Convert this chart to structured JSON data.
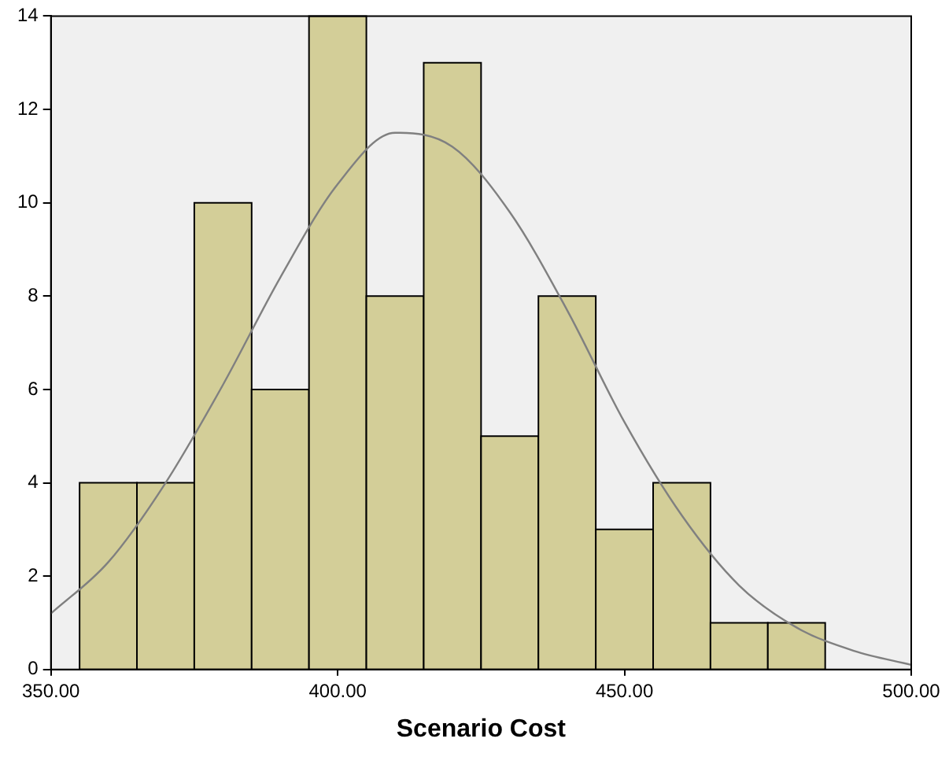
{
  "chart_data": {
    "type": "histogram",
    "xlabel": "Scenario Cost",
    "bins": [
      355,
      365,
      375,
      385,
      395,
      405,
      415,
      425,
      435,
      445,
      455,
      465,
      475,
      485
    ],
    "values": [
      4,
      4,
      10,
      6,
      14,
      8,
      13,
      5,
      8,
      3,
      4,
      1,
      1
    ],
    "color": "#d3ce98",
    "series": [
      {
        "type": "line",
        "color": "#808080",
        "x": [
          350,
          360,
          370,
          380,
          390,
          400,
          410,
          420,
          430,
          440,
          450,
          460,
          470,
          480,
          490,
          500
        ],
        "values": [
          1.2,
          2.3,
          4.0,
          6.1,
          8.4,
          10.4,
          11.5,
          11.2,
          9.8,
          7.7,
          5.3,
          3.3,
          1.8,
          0.9,
          0.4,
          0.1
        ]
      }
    ],
    "marker": "none",
    "xlim": [
      350,
      500
    ],
    "xticks": [
      {
        "value": 350,
        "label": "350.00"
      },
      {
        "value": 400,
        "label": "400.00"
      },
      {
        "value": 450,
        "label": "450.00"
      },
      {
        "value": 500,
        "label": "500.00"
      }
    ],
    "ylim": [
      0,
      14
    ],
    "yticks": [
      0,
      2,
      4,
      6,
      8,
      10,
      12,
      14
    ],
    "grid": false,
    "legend": false
  }
}
